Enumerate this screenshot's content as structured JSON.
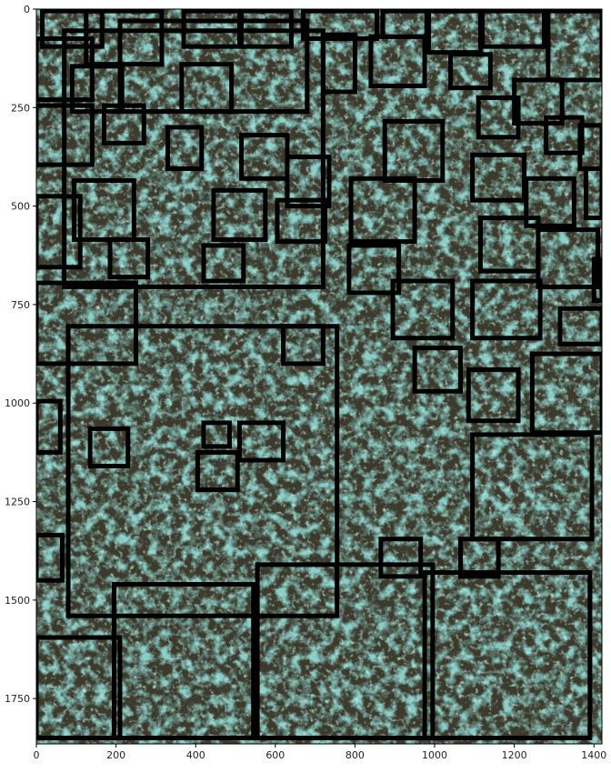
{
  "chart_data": {
    "type": "scatter",
    "title": "",
    "xlabel": "",
    "ylabel": "",
    "xlim": [
      0,
      1420
    ],
    "ylim": [
      1865,
      0
    ],
    "grid": false,
    "x_ticks": [
      0,
      200,
      400,
      600,
      800,
      1000,
      1200,
      1400
    ],
    "y_ticks": [
      0,
      250,
      500,
      750,
      1000,
      1250,
      1500,
      1750
    ],
    "x_tick_labels": [
      "0",
      "200",
      "400",
      "600",
      "800",
      "1000",
      "1200",
      "1400"
    ],
    "y_tick_labels": [
      "0",
      "250",
      "500",
      "750",
      "1000",
      "1250",
      "1500",
      "1750"
    ],
    "background": "aerial forest canopy image",
    "box_color": "#000000",
    "boxes": [
      [
        15,
        5,
        165,
        95
      ],
      [
        125,
        5,
        315,
        140
      ],
      [
        370,
        5,
        510,
        95
      ],
      [
        515,
        5,
        640,
        95
      ],
      [
        670,
        5,
        855,
        75
      ],
      [
        870,
        5,
        980,
        70
      ],
      [
        985,
        5,
        1115,
        110
      ],
      [
        1120,
        5,
        1275,
        95
      ],
      [
        1285,
        5,
        1420,
        180
      ],
      [
        0,
        75,
        140,
        230
      ],
      [
        70,
        55,
        720,
        705
      ],
      [
        720,
        65,
        800,
        210
      ],
      [
        210,
        30,
        680,
        260
      ],
      [
        840,
        70,
        975,
        195
      ],
      [
        1040,
        115,
        1140,
        200
      ],
      [
        90,
        145,
        215,
        260
      ],
      [
        365,
        140,
        490,
        260
      ],
      [
        0,
        245,
        140,
        395
      ],
      [
        170,
        245,
        270,
        340
      ],
      [
        330,
        300,
        415,
        405
      ],
      [
        515,
        320,
        630,
        430
      ],
      [
        875,
        285,
        1020,
        435
      ],
      [
        1110,
        225,
        1210,
        325
      ],
      [
        1200,
        180,
        1320,
        290
      ],
      [
        1280,
        275,
        1370,
        365
      ],
      [
        1365,
        295,
        1420,
        405
      ],
      [
        630,
        375,
        735,
        500
      ],
      [
        790,
        430,
        950,
        590
      ],
      [
        1095,
        370,
        1225,
        485
      ],
      [
        1230,
        430,
        1350,
        550
      ],
      [
        1380,
        405,
        1420,
        530
      ],
      [
        0,
        475,
        110,
        655
      ],
      [
        95,
        435,
        245,
        585
      ],
      [
        445,
        460,
        575,
        585
      ],
      [
        605,
        485,
        725,
        590
      ],
      [
        1115,
        530,
        1260,
        665
      ],
      [
        1260,
        560,
        1410,
        705
      ],
      [
        1400,
        635,
        1420,
        740
      ],
      [
        185,
        585,
        280,
        680
      ],
      [
        420,
        600,
        520,
        690
      ],
      [
        785,
        600,
        910,
        720
      ],
      [
        0,
        695,
        250,
        900
      ],
      [
        895,
        690,
        1045,
        835
      ],
      [
        1095,
        690,
        1265,
        835
      ],
      [
        1315,
        760,
        1420,
        850
      ],
      [
        80,
        805,
        755,
        1540
      ],
      [
        620,
        805,
        720,
        900
      ],
      [
        950,
        860,
        1065,
        970
      ],
      [
        1085,
        915,
        1210,
        1045
      ],
      [
        1245,
        875,
        1420,
        1075
      ],
      [
        0,
        995,
        60,
        1125
      ],
      [
        135,
        1065,
        230,
        1160
      ],
      [
        420,
        1050,
        485,
        1110
      ],
      [
        510,
        1050,
        620,
        1145
      ],
      [
        405,
        1125,
        505,
        1220
      ],
      [
        1095,
        1080,
        1395,
        1345
      ],
      [
        0,
        1335,
        65,
        1450
      ],
      [
        865,
        1345,
        965,
        1440
      ],
      [
        1065,
        1345,
        1160,
        1440
      ],
      [
        555,
        1410,
        995,
        1850
      ],
      [
        975,
        1430,
        1390,
        1850
      ],
      [
        195,
        1460,
        545,
        1850
      ],
      [
        0,
        1595,
        210,
        1850
      ]
    ]
  }
}
